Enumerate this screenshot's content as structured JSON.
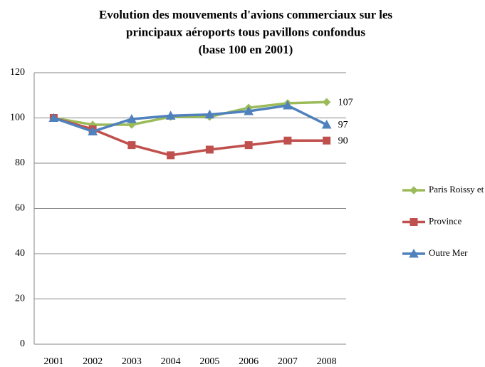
{
  "chart_data": {
    "type": "line",
    "title": [
      "Evolution des mouvements d'avions commerciaux sur les",
      "principaux aéroports tous pavillons confondus",
      "(base 100 en 2001)"
    ],
    "categories": [
      "2001",
      "2002",
      "2003",
      "2004",
      "2005",
      "2006",
      "2007",
      "2008"
    ],
    "series": [
      {
        "name": "Paris Roissy et Orly",
        "color": "#9bbb59",
        "marker": "diamond",
        "values": [
          100,
          97,
          97,
          100.5,
          100.5,
          104.5,
          106.5,
          107
        ]
      },
      {
        "name": "Province",
        "color": "#c0504d",
        "marker": "square",
        "values": [
          100,
          95,
          88,
          83.5,
          86,
          88,
          90,
          90
        ]
      },
      {
        "name": "Outre Mer",
        "color": "#4f81bd",
        "marker": "triangle",
        "values": [
          100,
          94,
          99.5,
          101,
          101.5,
          103,
          105.5,
          97
        ]
      }
    ],
    "label_last": true,
    "ylim": [
      0,
      120
    ],
    "yticks": [
      0,
      20,
      40,
      60,
      80,
      100,
      120
    ],
    "grid": true,
    "legend": "right"
  }
}
